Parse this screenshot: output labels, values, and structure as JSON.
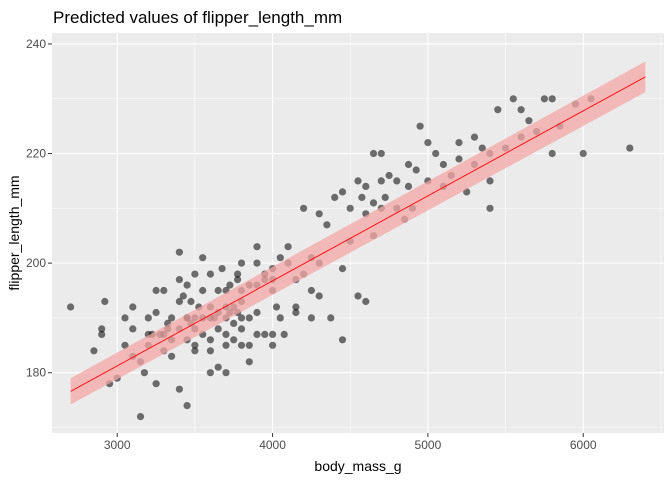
{
  "chart_data": {
    "type": "scatter",
    "title": "Predicted values of flipper_length_mm",
    "xlabel": "body_mass_g",
    "ylabel": "flipper_length_mm",
    "xlim": [
      2580,
      6520
    ],
    "ylim": [
      169,
      242
    ],
    "x_ticks": [
      3000,
      4000,
      5000,
      6000
    ],
    "y_ticks": [
      180,
      200,
      220,
      240
    ],
    "grid": true,
    "legend": "none",
    "colors": {
      "panel": "#ebebeb",
      "grid": "#ffffff",
      "points": "#000000",
      "fit_line": "#ff0000",
      "ribbon": "#f4a6a6",
      "tick_text": "#4d4d4d"
    },
    "point_opacity": 0.55,
    "fit": {
      "x": [
        2700,
        6400
      ],
      "y": [
        176.6,
        234.0
      ],
      "lower": [
        174.2,
        231.2
      ],
      "upper": [
        179.0,
        236.8
      ]
    },
    "points": [
      [
        2700,
        192
      ],
      [
        2850,
        184
      ],
      [
        2900,
        188
      ],
      [
        2900,
        187
      ],
      [
        2920,
        193
      ],
      [
        2950,
        178
      ],
      [
        3000,
        179
      ],
      [
        3050,
        185
      ],
      [
        3050,
        190
      ],
      [
        3100,
        192
      ],
      [
        3100,
        188
      ],
      [
        3100,
        183
      ],
      [
        3150,
        172
      ],
      [
        3150,
        182
      ],
      [
        3175,
        180
      ],
      [
        3200,
        185
      ],
      [
        3200,
        187
      ],
      [
        3200,
        190
      ],
      [
        3250,
        195
      ],
      [
        3250,
        191
      ],
      [
        3250,
        178
      ],
      [
        3275,
        187
      ],
      [
        3300,
        187
      ],
      [
        3300,
        184
      ],
      [
        3300,
        195
      ],
      [
        3325,
        189
      ],
      [
        3350,
        190
      ],
      [
        3350,
        186
      ],
      [
        3350,
        183
      ],
      [
        3400,
        197
      ],
      [
        3400,
        188
      ],
      [
        3400,
        202
      ],
      [
        3400,
        193
      ],
      [
        3400,
        177
      ],
      [
        3450,
        174
      ],
      [
        3450,
        190
      ],
      [
        3450,
        186
      ],
      [
        3450,
        190
      ],
      [
        3450,
        196
      ],
      [
        3475,
        193
      ],
      [
        3500,
        198
      ],
      [
        3500,
        190
      ],
      [
        3500,
        188
      ],
      [
        3500,
        185
      ],
      [
        3500,
        184
      ],
      [
        3525,
        192
      ],
      [
        3550,
        190
      ],
      [
        3550,
        195
      ],
      [
        3550,
        187
      ],
      [
        3550,
        201
      ],
      [
        3600,
        184
      ],
      [
        3600,
        192
      ],
      [
        3600,
        190
      ],
      [
        3600,
        186
      ],
      [
        3600,
        198
      ],
      [
        3625,
        190
      ],
      [
        3650,
        181
      ],
      [
        3650,
        195
      ],
      [
        3650,
        188
      ],
      [
        3675,
        199
      ],
      [
        3700,
        190
      ],
      [
        3700,
        187
      ],
      [
        3700,
        195
      ],
      [
        3700,
        180
      ],
      [
        3700,
        192
      ],
      [
        3725,
        196
      ],
      [
        3725,
        191
      ],
      [
        3750,
        192
      ],
      [
        3750,
        189
      ],
      [
        3750,
        186
      ],
      [
        3775,
        198
      ],
      [
        3775,
        197
      ],
      [
        3800,
        190
      ],
      [
        3800,
        185
      ],
      [
        3800,
        193
      ],
      [
        3800,
        188
      ],
      [
        3800,
        195
      ],
      [
        3800,
        200
      ],
      [
        3850,
        182
      ],
      [
        3850,
        196
      ],
      [
        3850,
        190
      ],
      [
        3850,
        185
      ],
      [
        3900,
        187
      ],
      [
        3900,
        191
      ],
      [
        3900,
        200
      ],
      [
        3900,
        203
      ],
      [
        3950,
        198
      ],
      [
        3950,
        197
      ],
      [
        3950,
        187
      ],
      [
        4000,
        187
      ],
      [
        4000,
        185
      ],
      [
        4000,
        197
      ],
      [
        4000,
        195
      ],
      [
        4000,
        199
      ],
      [
        4050,
        190
      ],
      [
        4050,
        201
      ],
      [
        4075,
        187
      ],
      [
        4100,
        200
      ],
      [
        4100,
        203
      ],
      [
        4150,
        197
      ],
      [
        4150,
        191
      ],
      [
        4200,
        198
      ],
      [
        4200,
        210
      ],
      [
        4250,
        195
      ],
      [
        4250,
        190
      ],
      [
        4300,
        209
      ],
      [
        4300,
        200
      ],
      [
        4350,
        207
      ],
      [
        4400,
        212
      ],
      [
        4450,
        213
      ],
      [
        4450,
        199
      ],
      [
        4450,
        186
      ],
      [
        4500,
        210
      ],
      [
        4500,
        204
      ],
      [
        4550,
        215
      ],
      [
        4600,
        209
      ],
      [
        4600,
        214
      ],
      [
        4650,
        211
      ],
      [
        4650,
        205
      ],
      [
        4700,
        220
      ],
      [
        4700,
        210
      ],
      [
        4725,
        212
      ],
      [
        4750,
        216
      ],
      [
        4800,
        215
      ],
      [
        4800,
        210
      ],
      [
        4850,
        208
      ],
      [
        4875,
        218
      ],
      [
        4900,
        210
      ],
      [
        4925,
        217
      ],
      [
        5000,
        215
      ],
      [
        5000,
        222
      ],
      [
        5050,
        220
      ],
      [
        5100,
        218
      ],
      [
        5150,
        216
      ],
      [
        5200,
        222
      ],
      [
        5250,
        213
      ],
      [
        5300,
        218
      ],
      [
        5350,
        221
      ],
      [
        5400,
        215
      ],
      [
        5400,
        220
      ],
      [
        5450,
        228
      ],
      [
        5500,
        221
      ],
      [
        5550,
        230
      ],
      [
        5600,
        223
      ],
      [
        5650,
        226
      ],
      [
        5700,
        224
      ],
      [
        5750,
        230
      ],
      [
        5800,
        230
      ],
      [
        5850,
        225
      ],
      [
        5950,
        229
      ],
      [
        6000,
        220
      ],
      [
        6050,
        230
      ],
      [
        6300,
        221
      ],
      [
        5300,
        223
      ],
      [
        4950,
        225
      ],
      [
        4575,
        212
      ],
      [
        4650,
        220
      ],
      [
        4700,
        215
      ],
      [
        4875,
        214
      ],
      [
        5100,
        214
      ],
      [
        5200,
        219
      ],
      [
        5400,
        210
      ],
      [
        5600,
        228
      ],
      [
        5800,
        220
      ],
      [
        3325,
        188
      ],
      [
        3475,
        189
      ],
      [
        3650,
        191
      ],
      [
        3700,
        185
      ],
      [
        4150,
        192
      ],
      [
        4300,
        194
      ],
      [
        4600,
        193
      ],
      [
        3900,
        196
      ],
      [
        4250,
        201
      ],
      [
        4550,
        194
      ],
      [
        3600,
        180
      ],
      [
        3425,
        194
      ],
      [
        3775,
        191
      ],
      [
        3225,
        187
      ],
      [
        4025,
        192
      ],
      [
        4375,
        190
      ]
    ]
  }
}
